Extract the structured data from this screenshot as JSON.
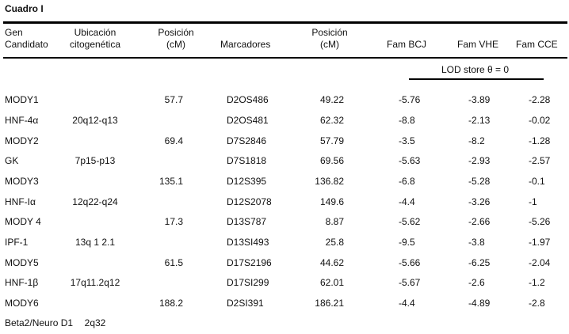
{
  "title": "Cuadro I",
  "headers": {
    "gen": [
      "Gen",
      "Candidato"
    ],
    "ubicacion": [
      "Ubicación",
      "citogenética"
    ],
    "posicion1": [
      "Posición",
      "(cM)"
    ],
    "marcadores": "Marcadores",
    "posicion2": [
      "Posición",
      "(cM)"
    ],
    "fam_bcj": "Fam BCJ",
    "fam_vhe": "Fam VHE",
    "fam_cce": "Fam CCE",
    "lod": "LOD store θ = 0"
  },
  "rows": [
    {
      "gen": "MODY1",
      "ubic": "",
      "pos": "57.7",
      "marc": "D2OS486",
      "pos2": "49.22",
      "bcj": "-5.76",
      "vhe": "-3.89",
      "cce": "-2.28"
    },
    {
      "gen": "HNF-4α",
      "ubic": "20q12-q13",
      "pos": "",
      "marc": "D2OS481",
      "pos2": "62.32",
      "bcj": "-8.8",
      "vhe": "-2.13",
      "cce": "-0.02"
    },
    {
      "gen": "MODY2",
      "ubic": "",
      "pos": "69.4",
      "marc": "D7S2846",
      "pos2": "57.79",
      "bcj": "-3.5",
      "vhe": "-8.2",
      "cce": "-1.28"
    },
    {
      "gen": "GK",
      "ubic": "7p15-p13",
      "pos": "",
      "marc": "D7S1818",
      "pos2": "69.56",
      "bcj": "-5.63",
      "vhe": "-2.93",
      "cce": "-2.57"
    },
    {
      "gen": "MODY3",
      "ubic": "",
      "pos": "135.1",
      "marc": "D12S395",
      "pos2": "136.82",
      "bcj": "-6.8",
      "vhe": "-5.28",
      "cce": "-0.1"
    },
    {
      "gen": "HNF-Iα",
      "ubic": "12q22-q24",
      "pos": "",
      "marc": "D12S2078",
      "pos2": "149.6",
      "bcj": "-4.4",
      "vhe": "-3.26",
      "cce": "-1"
    },
    {
      "gen": "MODY 4",
      "ubic": "",
      "pos": "17.3",
      "marc": "D13S787",
      "pos2": "8.87",
      "bcj": "-5.62",
      "vhe": "-2.66",
      "cce": "-5.26"
    },
    {
      "gen": "IPF-1",
      "ubic": "13q 1 2.1",
      "pos": "",
      "marc": "D13SI493",
      "pos2": "25.8",
      "bcj": "-9.5",
      "vhe": "-3.8",
      "cce": "-1.97"
    },
    {
      "gen": "MODY5",
      "ubic": "",
      "pos": "61.5",
      "marc": "D17S2196",
      "pos2": "44.62",
      "bcj": "-5.66",
      "vhe": "-6.25",
      "cce": "-2.04"
    },
    {
      "gen": "HNF-1β",
      "ubic": "17q11.2q12",
      "pos": "",
      "marc": "D17SI299",
      "pos2": "62.01",
      "bcj": "-5.67",
      "vhe": "-2.6",
      "cce": "-1.2"
    },
    {
      "gen": "MODY6",
      "ubic": "",
      "pos": "188.2",
      "marc": "D2SI391",
      "pos2": "186.21",
      "bcj": "-4.4",
      "vhe": "-4.89",
      "cce": "-2.8"
    },
    {
      "gen": "Beta2/Neuro D1",
      "ubic": "2q32",
      "pos": "",
      "marc": "",
      "pos2": "",
      "bcj": "",
      "vhe": "",
      "cce": ""
    }
  ]
}
